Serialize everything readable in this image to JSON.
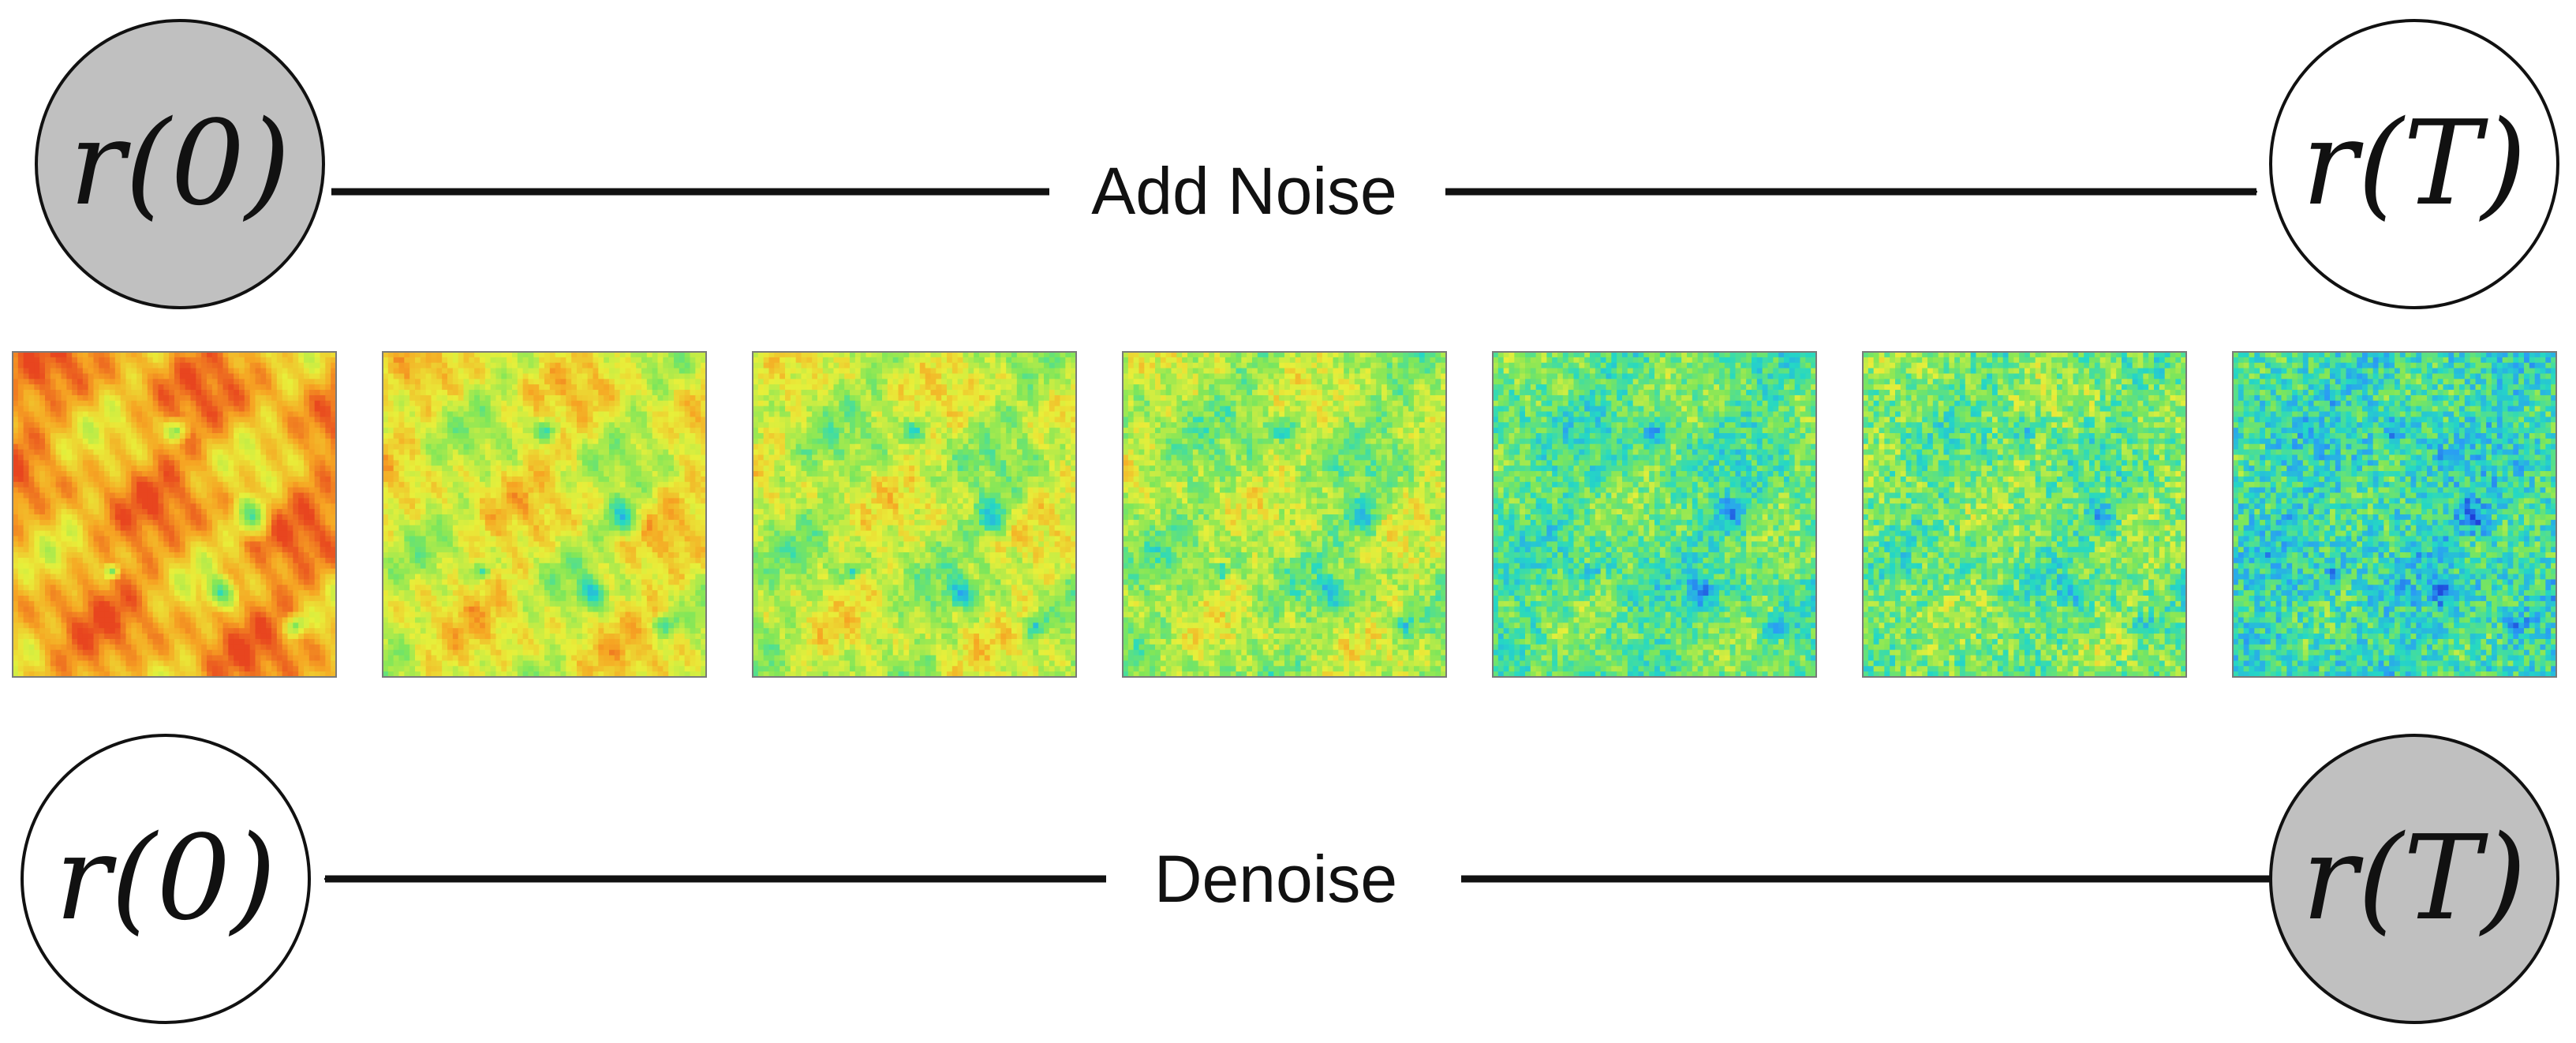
{
  "top_row": {
    "start_node": {
      "label": "r(0)",
      "fill": "#c0c0c0"
    },
    "end_node": {
      "label": "r(T)",
      "fill": "#ffffff"
    },
    "arrow_label": "Add Noise"
  },
  "bottom_row": {
    "start_node": {
      "label": "r(T)",
      "fill": "#c0c0c0"
    },
    "end_node": {
      "label": "r(0)",
      "fill": "#ffffff"
    },
    "arrow_label": "Denoise"
  },
  "noise_panels": {
    "count": 7,
    "colormap": [
      "#1e3fd8",
      "#2a9df4",
      "#25d8c4",
      "#7ee65a",
      "#e8ef3a",
      "#f6a523",
      "#e8451f"
    ],
    "mean_levels": [
      0.82,
      0.66,
      0.6,
      0.56,
      0.44,
      0.48,
      0.36
    ],
    "noise_levels": [
      0.05,
      0.16,
      0.26,
      0.34,
      0.46,
      0.52,
      0.6
    ]
  },
  "colors": {
    "stroke": "#111111",
    "shaded_node": "#c0c0c0",
    "open_node": "#ffffff"
  }
}
